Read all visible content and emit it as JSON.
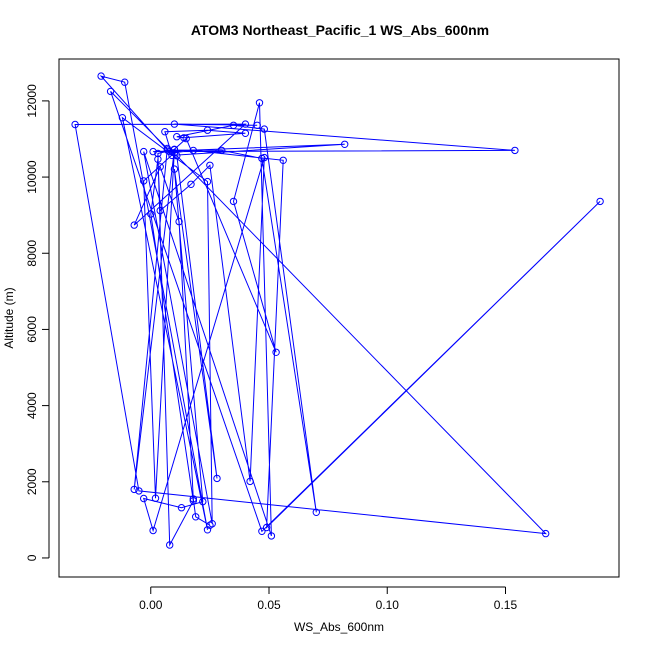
{
  "chart_data": {
    "type": "line",
    "title": "ATOM3 Northeast_Pacific_1 WS_Abs_600nm",
    "xlabel": "WS_Abs_600nm",
    "ylabel": "Altitude (m)",
    "xlim": [
      -0.0388,
      0.198
    ],
    "ylim": [
      -500,
      13100
    ],
    "x_ticks": [
      0.0,
      0.05,
      0.1,
      0.15
    ],
    "x_tick_labels": [
      "0.00",
      "0.05",
      "0.10",
      "0.15"
    ],
    "y_ticks": [
      0,
      2000,
      4000,
      6000,
      8000,
      10000,
      12000
    ],
    "y_tick_labels": [
      "0",
      "2000",
      "4000",
      "6000",
      "8000",
      "10000",
      "12000"
    ],
    "grid": false,
    "legend": "none",
    "series": [
      {
        "color": "#0000ff",
        "marker": "open-circle",
        "points": [
          [
            0.045,
            11360
          ],
          [
            0.01,
            11390
          ],
          [
            0.154,
            10700
          ],
          [
            0.008,
            10670
          ],
          [
            0.001,
            10670
          ],
          [
            0.082,
            10860
          ],
          [
            0.009,
            10570
          ],
          [
            0.006,
            11190
          ],
          [
            0.024,
            11230
          ],
          [
            0.04,
            11150
          ],
          [
            0.014,
            11030
          ],
          [
            0.011,
            11060
          ],
          [
            0.035,
            11360
          ],
          [
            0.048,
            11260
          ],
          [
            0.07,
            1200
          ],
          [
            0.047,
            10490
          ],
          [
            0.03,
            10700
          ],
          [
            0.007,
            10710
          ],
          [
            -0.021,
            12650
          ],
          [
            -0.011,
            12490
          ],
          [
            0.024,
            740
          ],
          [
            -0.012,
            11560
          ],
          [
            0.024,
            9880
          ],
          [
            0.026,
            900
          ],
          [
            -0.003,
            10670
          ],
          [
            0.051,
            580
          ],
          [
            0.046,
            11950
          ],
          [
            0.035,
            9360
          ],
          [
            0.053,
            5400
          ],
          [
            0.015,
            11010
          ],
          [
            0.01,
            10730
          ],
          [
            -0.007,
            1800
          ],
          [
            0.007,
            10750
          ],
          [
            -0.017,
            12250
          ],
          [
            0.047,
            700
          ],
          [
            0.19,
            9360
          ],
          [
            0.049,
            800
          ],
          [
            0.056,
            10440
          ],
          [
            0.018,
            10700
          ],
          [
            0.01,
            10640
          ],
          [
            -0.003,
            9900
          ],
          [
            0.002,
            1570
          ],
          [
            0.01,
            10720
          ],
          [
            0.003,
            10620
          ],
          [
            0.008,
            340
          ],
          [
            0.018,
            1500
          ],
          [
            0.0,
            9030
          ],
          [
            0.003,
            10470
          ],
          [
            0.004,
            9120
          ],
          [
            0.017,
            9810
          ],
          [
            0.025,
            10310
          ],
          [
            0.042,
            2010
          ],
          [
            0.048,
            10510
          ],
          [
            0.001,
            720
          ],
          [
            -0.003,
            1560
          ],
          [
            0.013,
            1320
          ],
          [
            0.022,
            1480
          ],
          [
            0.01,
            10210
          ],
          [
            0.028,
            2090
          ],
          [
            0.011,
            10560
          ],
          [
            0.167,
            640
          ],
          [
            -0.005,
            1760
          ],
          [
            -0.032,
            11380
          ],
          [
            0.04,
            11390
          ],
          [
            -0.007,
            8740
          ],
          [
            0.004,
            10270
          ],
          [
            0.012,
            8830
          ],
          [
            0.018,
            1550
          ],
          [
            0.019,
            1080
          ],
          [
            0.025,
            860
          ]
        ]
      }
    ]
  }
}
